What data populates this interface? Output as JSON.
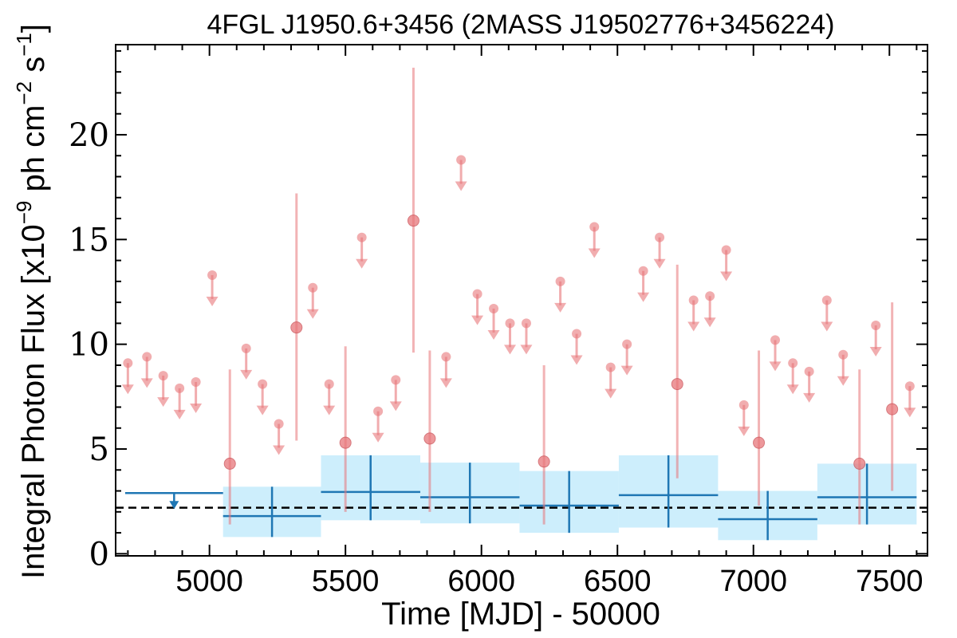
{
  "chart_data": {
    "type": "scatter",
    "title": "4FGL J1950.6+3456 (2MASS J19502776+3456224)",
    "xlabel": "Time [MJD] - 50000",
    "ylabel": "Integral Photon Flux [x10$^{-9}$ ph cm$^{-2}$ s$^{-1}$]",
    "ylabel_parts": [
      "Integral Photon Flux [x10",
      "−9",
      " ph cm",
      "−2",
      " s",
      "−1",
      "]"
    ],
    "xlim": [
      4655,
      7640
    ],
    "ylim": [
      -0.1,
      24.3
    ],
    "x_major_ticks": [
      5000,
      5500,
      6000,
      6500,
      7000,
      7500
    ],
    "x_tick_labels": [
      "5000",
      "5500",
      "6000",
      "6500",
      "7000",
      "7500"
    ],
    "y_major_ticks": [
      0,
      5,
      10,
      15,
      20
    ],
    "y_tick_labels": [
      "0",
      "5",
      "10",
      "15",
      "20"
    ],
    "grid": false,
    "reference_line": {
      "y": 2.2,
      "style": "dashed",
      "color": "#000000"
    },
    "colors": {
      "short_bins": "#e8767a",
      "long_bins": "#1f77b4",
      "long_band": "#cdeefc",
      "reference": "#000000"
    },
    "short_bins_detections": [
      {
        "x": 5075,
        "y": 4.3,
        "ylo": 1.4,
        "yhi": 8.8
      },
      {
        "x": 5320,
        "y": 10.8,
        "ylo": 5.4,
        "yhi": 17.2
      },
      {
        "x": 5500,
        "y": 5.3,
        "ylo": 2.0,
        "yhi": 9.9
      },
      {
        "x": 5750,
        "y": 15.9,
        "ylo": 9.6,
        "yhi": 23.2
      },
      {
        "x": 5810,
        "y": 5.5,
        "ylo": 2.0,
        "yhi": 9.7
      },
      {
        "x": 6230,
        "y": 4.4,
        "ylo": 1.4,
        "yhi": 9.0
      },
      {
        "x": 6720,
        "y": 8.1,
        "ylo": 3.6,
        "yhi": 13.8
      },
      {
        "x": 7020,
        "y": 5.3,
        "ylo": 2.3,
        "yhi": 9.7
      },
      {
        "x": 7390,
        "y": 4.3,
        "ylo": 1.4,
        "yhi": 8.8
      },
      {
        "x": 7510,
        "y": 6.9,
        "ylo": 3.0,
        "yhi": 12.0
      }
    ],
    "short_bins_upper_limits": [
      {
        "x": 4700,
        "y": 9.1
      },
      {
        "x": 4770,
        "y": 9.4
      },
      {
        "x": 4830,
        "y": 8.5
      },
      {
        "x": 4890,
        "y": 7.9
      },
      {
        "x": 4950,
        "y": 8.2
      },
      {
        "x": 5010,
        "y": 13.3
      },
      {
        "x": 5135,
        "y": 9.8
      },
      {
        "x": 5195,
        "y": 8.1
      },
      {
        "x": 5255,
        "y": 6.2
      },
      {
        "x": 5380,
        "y": 12.7
      },
      {
        "x": 5440,
        "y": 8.1
      },
      {
        "x": 5560,
        "y": 15.1
      },
      {
        "x": 5620,
        "y": 6.8
      },
      {
        "x": 5685,
        "y": 8.3
      },
      {
        "x": 5870,
        "y": 9.4
      },
      {
        "x": 5925,
        "y": 18.8
      },
      {
        "x": 5985,
        "y": 12.4
      },
      {
        "x": 6045,
        "y": 11.7
      },
      {
        "x": 6105,
        "y": 11.0
      },
      {
        "x": 6165,
        "y": 11.0
      },
      {
        "x": 6290,
        "y": 13.0
      },
      {
        "x": 6350,
        "y": 10.5
      },
      {
        "x": 6415,
        "y": 15.6
      },
      {
        "x": 6475,
        "y": 8.9
      },
      {
        "x": 6535,
        "y": 10.0
      },
      {
        "x": 6595,
        "y": 13.5
      },
      {
        "x": 6655,
        "y": 15.1
      },
      {
        "x": 6780,
        "y": 12.1
      },
      {
        "x": 6840,
        "y": 12.3
      },
      {
        "x": 6900,
        "y": 14.5
      },
      {
        "x": 6965,
        "y": 7.1
      },
      {
        "x": 7080,
        "y": 10.2
      },
      {
        "x": 7145,
        "y": 9.1
      },
      {
        "x": 7205,
        "y": 8.7
      },
      {
        "x": 7270,
        "y": 12.1
      },
      {
        "x": 7330,
        "y": 9.5
      },
      {
        "x": 7450,
        "y": 10.9
      },
      {
        "x": 7575,
        "y": 8.0
      }
    ],
    "long_bins": [
      {
        "xlo": 5050,
        "xhi": 5410,
        "y": 1.8,
        "ylo": 0.8,
        "yhi": 3.2
      },
      {
        "xlo": 5410,
        "xhi": 5775,
        "y": 2.95,
        "ylo": 1.6,
        "yhi": 4.7
      },
      {
        "xlo": 5775,
        "xhi": 6140,
        "y": 2.7,
        "ylo": 1.45,
        "yhi": 4.35
      },
      {
        "xlo": 6140,
        "xhi": 6505,
        "y": 2.3,
        "ylo": 1.0,
        "yhi": 3.95
      },
      {
        "xlo": 6505,
        "xhi": 6870,
        "y": 2.8,
        "ylo": 1.25,
        "yhi": 4.7
      },
      {
        "xlo": 6870,
        "xhi": 7235,
        "y": 1.65,
        "ylo": 0.65,
        "yhi": 3.0
      },
      {
        "xlo": 7235,
        "xhi": 7600,
        "y": 2.7,
        "ylo": 1.4,
        "yhi": 4.3
      }
    ],
    "long_bins_upper_limits": [
      {
        "xlo": 4690,
        "xhi": 5050,
        "y": 2.9
      }
    ]
  }
}
